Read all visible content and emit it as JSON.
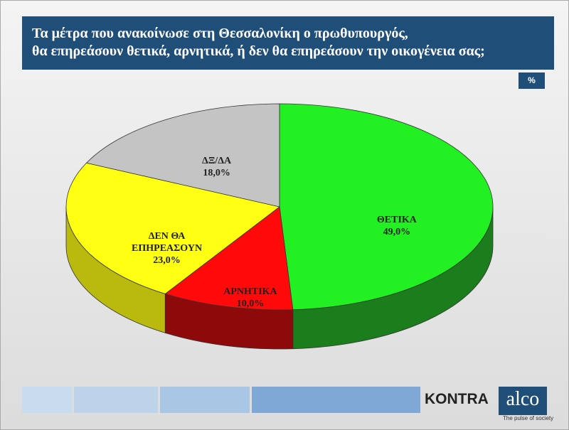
{
  "title_lines": [
    "Τα μέτρα που ανακοίνωσε στη Θεσσαλονίκη ο πρωθυπουργός,",
    "θα επηρεάσουν  θετικά, αρνητικά, ή δεν θα επηρεάσουν την οικογένεια σας;"
  ],
  "unit_badge": "%",
  "chart_data": {
    "type": "pie3d",
    "categories": [
      "ΘΕΤΙΚΑ",
      "ΑΡΝΗΤΙΚΑ",
      "ΔΕΝ ΘΑ ΕΠΗΡΕΑΣΟΥΝ",
      "ΔΞ/ΔΑ"
    ],
    "values": [
      49,
      10,
      23,
      18
    ],
    "value_labels": [
      "49,0%",
      "10,0%",
      "23,0%",
      "18,0%"
    ],
    "colors": [
      "#22f022",
      "#ff0a0a",
      "#ffff14",
      "#c4c4c4"
    ],
    "side_colors": [
      "#1b7d1b",
      "#8e0a0a",
      "#b9b90e",
      "#8c8c8c"
    ]
  },
  "logos": {
    "kontra": "KONTRA",
    "alco": "alco",
    "alco_tagline": "The pulse of society"
  }
}
